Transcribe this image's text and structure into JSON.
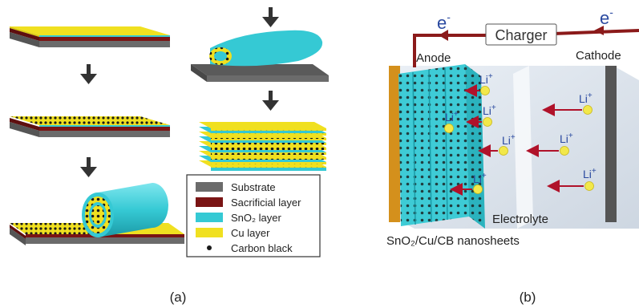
{
  "colors": {
    "substrate": "#6b6b6b",
    "sacrificial": "#7a1414",
    "sno2": "#35c9d4",
    "cu": "#f0e020",
    "carbon": "#1a1a1a",
    "wire": "#8b1a1a",
    "electron": "#2b4aa0",
    "li": "#f2e84a"
  },
  "panel_a": {
    "label": "(a)",
    "legend": [
      {
        "label": "Substrate",
        "color": "#6b6b6b",
        "shape": "rect"
      },
      {
        "label": "Sacrificial layer",
        "color": "#7a1414",
        "shape": "rect"
      },
      {
        "label": "SnO₂ layer",
        "color": "#35c9d4",
        "shape": "rect"
      },
      {
        "label": "Cu layer",
        "color": "#f0e020",
        "shape": "rect"
      },
      {
        "label": "Carbon black",
        "color": "#1a1a1a",
        "shape": "dot"
      }
    ]
  },
  "panel_b": {
    "label": "(b)",
    "charger": "Charger",
    "anode": "Anode",
    "cathode": "Cathode",
    "electron_left": "e",
    "electron_right": "e",
    "electron_sup": "-",
    "electrolyte": "Electrolyte",
    "nanosheets": "SnO₂/Cu/CB nanosheets",
    "ion": "Li",
    "ion_sup": "+"
  }
}
